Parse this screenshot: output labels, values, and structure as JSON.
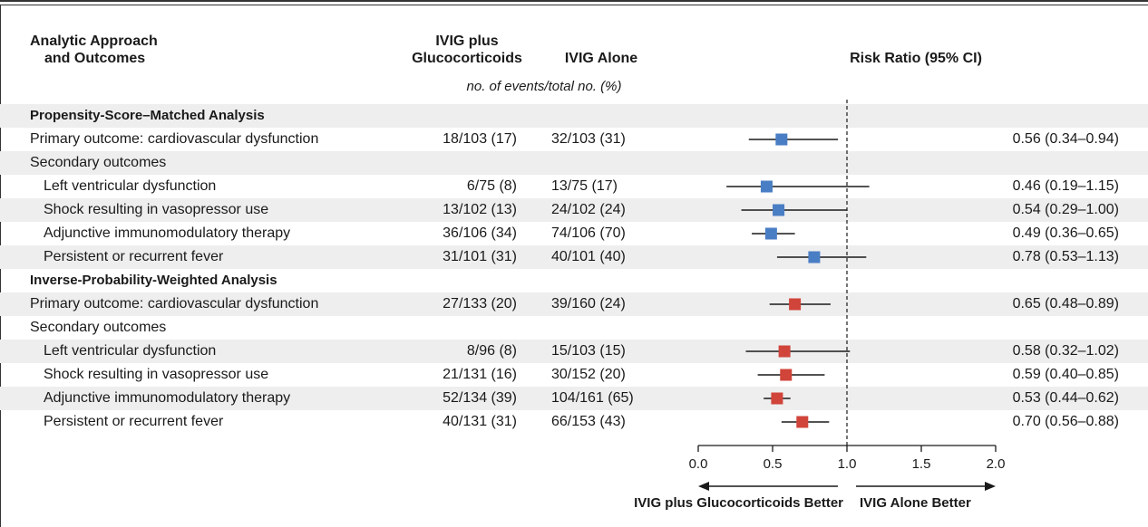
{
  "headers": {
    "outcomes": "Analytic Approach\nand Outcomes",
    "group1": "IVIG plus\nGlucocorticoids",
    "group2": "IVIG Alone",
    "effect": "Risk Ratio (95% CI)",
    "subheader": "no. of events/total no. (%)"
  },
  "colors": {
    "matched": "#4a7ec4",
    "weighted": "#d0443a",
    "stripe": "#eeeeee",
    "line": "#1a1a1a"
  },
  "chart_data": {
    "type": "forest",
    "xlim": [
      0.0,
      2.0
    ],
    "xticks": [
      0.0,
      0.5,
      1.0,
      1.5,
      2.0
    ],
    "xtick_labels": [
      "0.0",
      "0.5",
      "1.0",
      "1.5",
      "2.0"
    ],
    "reference_line": 1.0,
    "left_label": "IVIG plus Glucocorticoids Better",
    "right_label": "IVIG Alone Better",
    "rows": [
      {
        "label": "Propensity-Score–Matched Analysis",
        "kind": "section",
        "stripe": true
      },
      {
        "label": "Primary outcome: cardiovascular dysfunction",
        "kind": "data",
        "group": "matched",
        "g1": "18/103 (17)",
        "g2": "32/103 (31)",
        "ci_text": "0.56 (0.34–0.94)",
        "est": 0.56,
        "lo": 0.34,
        "hi": 0.94,
        "stripe": false
      },
      {
        "label": "Secondary outcomes",
        "kind": "plain",
        "stripe": true
      },
      {
        "label": "Left ventricular dysfunction",
        "kind": "data",
        "indent": true,
        "group": "matched",
        "g1": "6/75 (8)",
        "g2": "13/75 (17)",
        "ci_text": "0.46 (0.19–1.15)",
        "est": 0.46,
        "lo": 0.19,
        "hi": 1.15,
        "stripe": false
      },
      {
        "label": "Shock resulting in vasopressor use",
        "kind": "data",
        "indent": true,
        "group": "matched",
        "g1": "13/102 (13)",
        "g2": "24/102 (24)",
        "ci_text": "0.54 (0.29–1.00)",
        "est": 0.54,
        "lo": 0.29,
        "hi": 1.0,
        "stripe": true
      },
      {
        "label": "Adjunctive immunomodulatory therapy",
        "kind": "data",
        "indent": true,
        "group": "matched",
        "g1": "36/106 (34)",
        "g2": "74/106 (70)",
        "ci_text": "0.49 (0.36–0.65)",
        "est": 0.49,
        "lo": 0.36,
        "hi": 0.65,
        "stripe": false
      },
      {
        "label": "Persistent or recurrent fever",
        "kind": "data",
        "indent": true,
        "group": "matched",
        "g1": "31/101 (31)",
        "g2": "40/101 (40)",
        "ci_text": "0.78 (0.53–1.13)",
        "est": 0.78,
        "lo": 0.53,
        "hi": 1.13,
        "stripe": true
      },
      {
        "label": "Inverse-Probability-Weighted Analysis",
        "kind": "section",
        "stripe": false
      },
      {
        "label": "Primary outcome: cardiovascular dysfunction",
        "kind": "data",
        "group": "weighted",
        "g1": "27/133 (20)",
        "g2": "39/160 (24)",
        "ci_text": "0.65 (0.48–0.89)",
        "est": 0.65,
        "lo": 0.48,
        "hi": 0.89,
        "stripe": true
      },
      {
        "label": "Secondary outcomes",
        "kind": "plain",
        "stripe": false
      },
      {
        "label": "Left ventricular dysfunction",
        "kind": "data",
        "indent": true,
        "group": "weighted",
        "g1": "8/96 (8)",
        "g2": "15/103 (15)",
        "ci_text": "0.58 (0.32–1.02)",
        "est": 0.58,
        "lo": 0.32,
        "hi": 1.02,
        "stripe": true
      },
      {
        "label": "Shock resulting in vasopressor use",
        "kind": "data",
        "indent": true,
        "group": "weighted",
        "g1": "21/131 (16)",
        "g2": "30/152 (20)",
        "ci_text": "0.59 (0.40–0.85)",
        "est": 0.59,
        "lo": 0.4,
        "hi": 0.85,
        "stripe": false
      },
      {
        "label": "Adjunctive immunomodulatory therapy",
        "kind": "data",
        "indent": true,
        "group": "weighted",
        "g1": "52/134 (39)",
        "g2": "104/161 (65)",
        "ci_text": "0.53 (0.44–0.62)",
        "est": 0.53,
        "lo": 0.44,
        "hi": 0.62,
        "stripe": true
      },
      {
        "label": "Persistent or recurrent fever",
        "kind": "data",
        "indent": true,
        "group": "weighted",
        "g1": "40/131 (31)",
        "g2": "66/153 (43)",
        "ci_text": "0.70 (0.56–0.88)",
        "est": 0.7,
        "lo": 0.56,
        "hi": 0.88,
        "stripe": false
      }
    ]
  }
}
